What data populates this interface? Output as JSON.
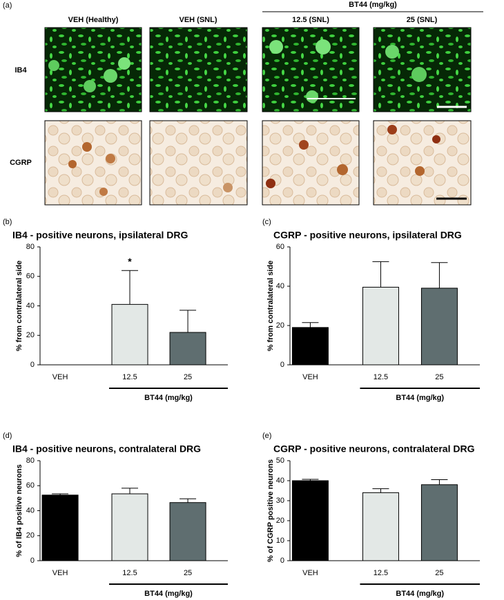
{
  "panel_a": {
    "label": "(a)",
    "group_label": "BT44 (mg/kg)",
    "columns": [
      "VEH (Healthy)",
      "VEH (SNL)",
      "12.5 (SNL)",
      "25 (SNL)"
    ],
    "rows": [
      "IB4",
      "CGRP"
    ]
  },
  "chart_data": [
    {
      "type": "bar",
      "label": "(b)",
      "title": "IB4 - positive neurons, ipsilateral DRG",
      "y_label": "% from contralateral side",
      "categories": [
        "VEH",
        "12.5",
        "25"
      ],
      "values": [
        0,
        41,
        22
      ],
      "errors": [
        0,
        23,
        15
      ],
      "colors": [
        "#000000",
        "#e3e8e6",
        "#5f6e70"
      ],
      "group_label": "BT44 (mg/kg)",
      "annotations": [
        {
          "text": "*",
          "category": "12.5"
        }
      ],
      "ylim": [
        0,
        80
      ],
      "yticks": [
        0,
        20,
        40,
        60,
        80
      ]
    },
    {
      "type": "bar",
      "label": "(c)",
      "title": "CGRP - positive neurons, ipsilateral DRG",
      "y_label": "% from contralateral side",
      "categories": [
        "VEH",
        "12.5",
        "25"
      ],
      "values": [
        19,
        39.5,
        39
      ],
      "errors": [
        2.5,
        13,
        13
      ],
      "colors": [
        "#000000",
        "#e3e8e6",
        "#5f6e70"
      ],
      "group_label": "BT44 (mg/kg)",
      "ylim": [
        0,
        60
      ],
      "yticks": [
        0,
        20,
        40,
        60
      ]
    },
    {
      "type": "bar",
      "label": "(d)",
      "title": "IB4 - positive neurons, contralateral DRG",
      "y_label": "% of IB4 positive neurons",
      "categories": [
        "VEH",
        "12.5",
        "25"
      ],
      "values": [
        52.5,
        53.5,
        46.5
      ],
      "errors": [
        1,
        4.5,
        3
      ],
      "colors": [
        "#000000",
        "#e3e8e6",
        "#5f6e70"
      ],
      "group_label": "BT44 (mg/kg)",
      "ylim": [
        0,
        80
      ],
      "yticks": [
        0,
        20,
        40,
        60,
        80
      ]
    },
    {
      "type": "bar",
      "label": "(e)",
      "title": "CGRP - positive neurons, contralateral DRG",
      "y_label": "% of CGRP positive neurons",
      "categories": [
        "VEH",
        "12.5",
        "25"
      ],
      "values": [
        40,
        34,
        38
      ],
      "errors": [
        0.7,
        2,
        2.5
      ],
      "colors": [
        "#000000",
        "#e3e8e6",
        "#5f6e70"
      ],
      "group_label": "BT44 (mg/kg)",
      "ylim": [
        0,
        50
      ],
      "yticks": [
        0,
        10,
        20,
        30,
        40,
        50
      ]
    }
  ]
}
